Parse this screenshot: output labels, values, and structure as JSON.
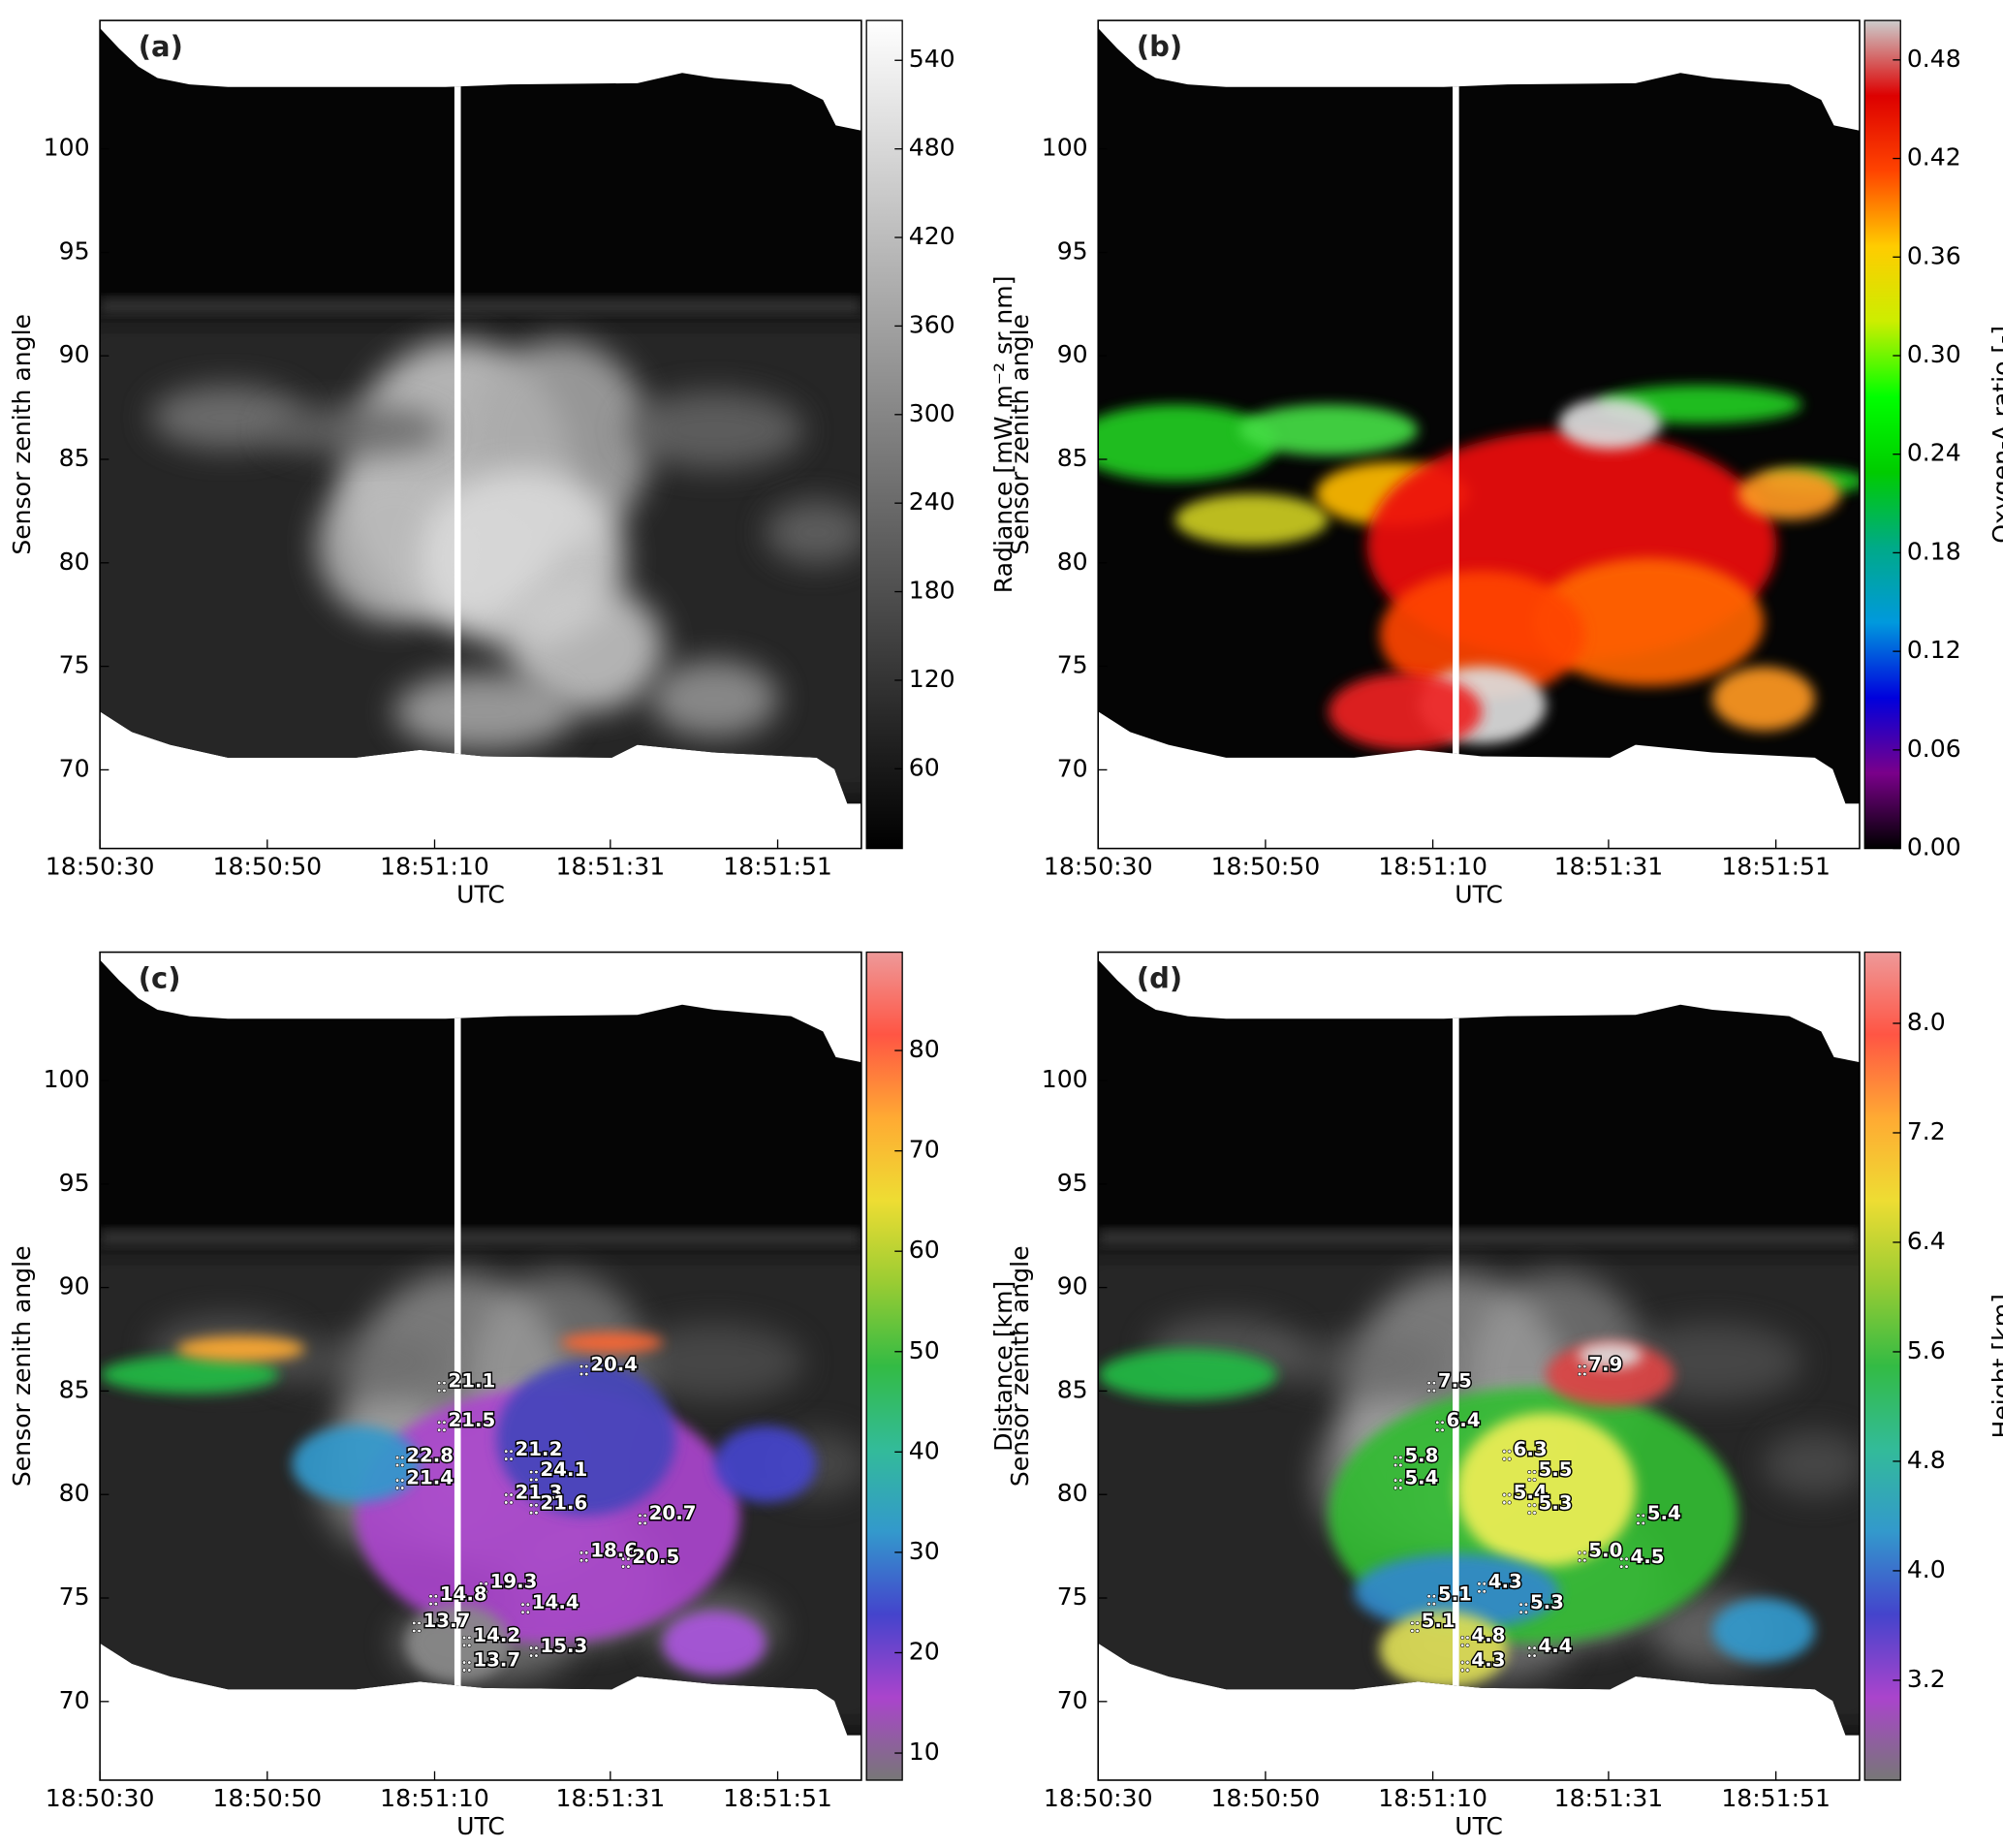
{
  "chart_data": [
    {
      "type": "image",
      "panel_label": "(a)",
      "xlabel": "UTC",
      "ylabel": "Sensor zenith angle",
      "xlim": [
        "18:50:30",
        "18:52:01"
      ],
      "xticks": [
        "18:50:30",
        "18:50:50",
        "18:51:10",
        "18:51:31",
        "18:51:51"
      ],
      "ylim": [
        66.2,
        106.2
      ],
      "yticks": [
        70,
        75,
        80,
        85,
        90,
        95,
        100
      ],
      "colorbar": {
        "label": "Radiance [mW m⁻² sr nm]",
        "clim": [
          6,
          567
        ],
        "ticks": [
          60,
          120,
          180,
          240,
          300,
          360,
          420,
          480,
          540
        ],
        "colors": [
          "#000000",
          "#ffffff"
        ]
      }
    },
    {
      "type": "image",
      "panel_label": "(b)",
      "xlabel": "UTC",
      "ylabel": "Sensor zenith angle",
      "xlim": [
        "18:50:30",
        "18:52:01"
      ],
      "xticks": [
        "18:50:30",
        "18:50:50",
        "18:51:10",
        "18:51:31",
        "18:51:51"
      ],
      "ylim": [
        66.2,
        106.2
      ],
      "yticks": [
        70,
        75,
        80,
        85,
        90,
        95,
        100
      ],
      "colorbar": {
        "label": "Oxygen-A ratio [-]",
        "clim": [
          0,
          0.504
        ],
        "ticks": [
          {
            "value": 0,
            "label": "0.00"
          },
          {
            "value": 0.06,
            "label": "0.06"
          },
          {
            "value": 0.12,
            "label": "0.12"
          },
          {
            "value": 0.18,
            "label": "0.18"
          },
          {
            "value": 0.24,
            "label": "0.24"
          },
          {
            "value": 0.3,
            "label": "0.30"
          },
          {
            "value": 0.36,
            "label": "0.36"
          },
          {
            "value": 0.42,
            "label": "0.42"
          },
          {
            "value": 0.48,
            "label": "0.48"
          }
        ],
        "colors": [
          "#000000",
          "#7a008a",
          "#0000dd",
          "#0099dd",
          "#00aa88",
          "#00cc00",
          "#00ff00",
          "#ccee00",
          "#ffcc00",
          "#ff4400",
          "#dd0000",
          "#cccccc"
        ]
      }
    },
    {
      "type": "image",
      "panel_label": "(c)",
      "xlabel": "UTC",
      "ylabel": "Sensor zenith angle",
      "xlim": [
        "18:50:30",
        "18:52:01"
      ],
      "xticks": [
        "18:50:30",
        "18:50:50",
        "18:51:10",
        "18:51:31",
        "18:51:51"
      ],
      "ylim": [
        66.2,
        106.2
      ],
      "yticks": [
        70,
        75,
        80,
        85,
        90,
        95,
        100
      ],
      "colorbar": {
        "label": "Distance [km]",
        "clim": [
          7.3,
          89.8
        ],
        "ticks": [
          10,
          20,
          30,
          40,
          50,
          60,
          70,
          80
        ],
        "colors": [
          "#777777",
          "#aa44cc",
          "#4444cc",
          "#3399cc",
          "#33bb99",
          "#33bb44",
          "#99cc33",
          "#eedd33",
          "#ffaa33",
          "#ff5544",
          "#ee9999"
        ]
      },
      "annotations": {
        "x": [
          "18:51:11",
          "18:51:28",
          "18:51:11",
          "18:51:06",
          "18:51:19",
          "18:51:22",
          "18:51:06",
          "18:51:19",
          "18:51:22",
          "18:51:35",
          "18:51:28",
          "18:51:33",
          "18:51:16",
          "18:51:10",
          "18:51:21",
          "18:51:08",
          "18:51:14",
          "18:51:22",
          "18:51:14"
        ],
        "y": [
          85.2,
          86.0,
          83.3,
          81.6,
          81.9,
          80.9,
          80.5,
          79.8,
          79.3,
          78.8,
          77.0,
          76.7,
          75.5,
          74.9,
          74.5,
          73.6,
          72.9,
          72.4,
          71.7
        ],
        "values": [
          21.1,
          20.4,
          21.5,
          22.8,
          21.2,
          24.1,
          21.4,
          21.3,
          21.6,
          20.7,
          18.6,
          20.5,
          19.3,
          14.8,
          14.4,
          13.7,
          14.2,
          15.3,
          13.7
        ]
      }
    },
    {
      "type": "image",
      "panel_label": "(d)",
      "xlabel": "UTC",
      "ylabel": "Sensor zenith angle",
      "xlim": [
        "18:50:30",
        "18:52:01"
      ],
      "xticks": [
        "18:50:30",
        "18:50:50",
        "18:51:10",
        "18:51:31",
        "18:51:51"
      ],
      "ylim": [
        66.2,
        106.2
      ],
      "yticks": [
        70,
        75,
        80,
        85,
        90,
        95,
        100
      ],
      "colorbar": {
        "label": "Height [km]",
        "clim": [
          2.47,
          8.52
        ],
        "ticks": [
          3.2,
          {
            "value": 4,
            "label": "4.0"
          },
          4.8,
          5.6,
          6.4,
          7.2,
          {
            "value": 8,
            "label": "8.0"
          }
        ],
        "colors": [
          "#777777",
          "#aa44cc",
          "#4444cc",
          "#3399cc",
          "#33bb99",
          "#33bb44",
          "#99cc33",
          "#eedd33",
          "#ffaa33",
          "#ff5544",
          "#ee9999"
        ]
      },
      "annotations": {
        "x": [
          "18:51:10",
          "18:51:28",
          "18:51:11",
          "18:51:06",
          "18:51:19",
          "18:51:22",
          "18:51:06",
          "18:51:19",
          "18:51:22",
          "18:51:35",
          "18:51:28",
          "18:51:33",
          "18:51:16",
          "18:51:10",
          "18:51:21",
          "18:51:08",
          "18:51:14",
          "18:51:22",
          "18:51:14"
        ],
        "y": [
          85.2,
          86.0,
          83.3,
          81.6,
          81.9,
          80.9,
          80.5,
          79.8,
          79.3,
          78.8,
          77.0,
          76.7,
          75.5,
          74.9,
          74.5,
          73.6,
          72.9,
          72.4,
          71.7
        ],
        "values": [
          7.5,
          7.9,
          6.4,
          5.8,
          6.3,
          5.5,
          5.4,
          5.4,
          5.3,
          5.4,
          5.0,
          4.5,
          4.3,
          5.1,
          5.3,
          5.1,
          4.8,
          4.4,
          4.3
        ],
        "value_labels": [
          "7.5",
          "7.9",
          "6.4",
          "5.8",
          "6.3",
          "5.5",
          "5.4",
          "5.4",
          "5.3",
          "5.4",
          "5.0",
          "4.5",
          "4.3",
          "5.1",
          "5.3",
          "5.1",
          "4.8",
          "4.4",
          "4.3"
        ]
      }
    }
  ]
}
